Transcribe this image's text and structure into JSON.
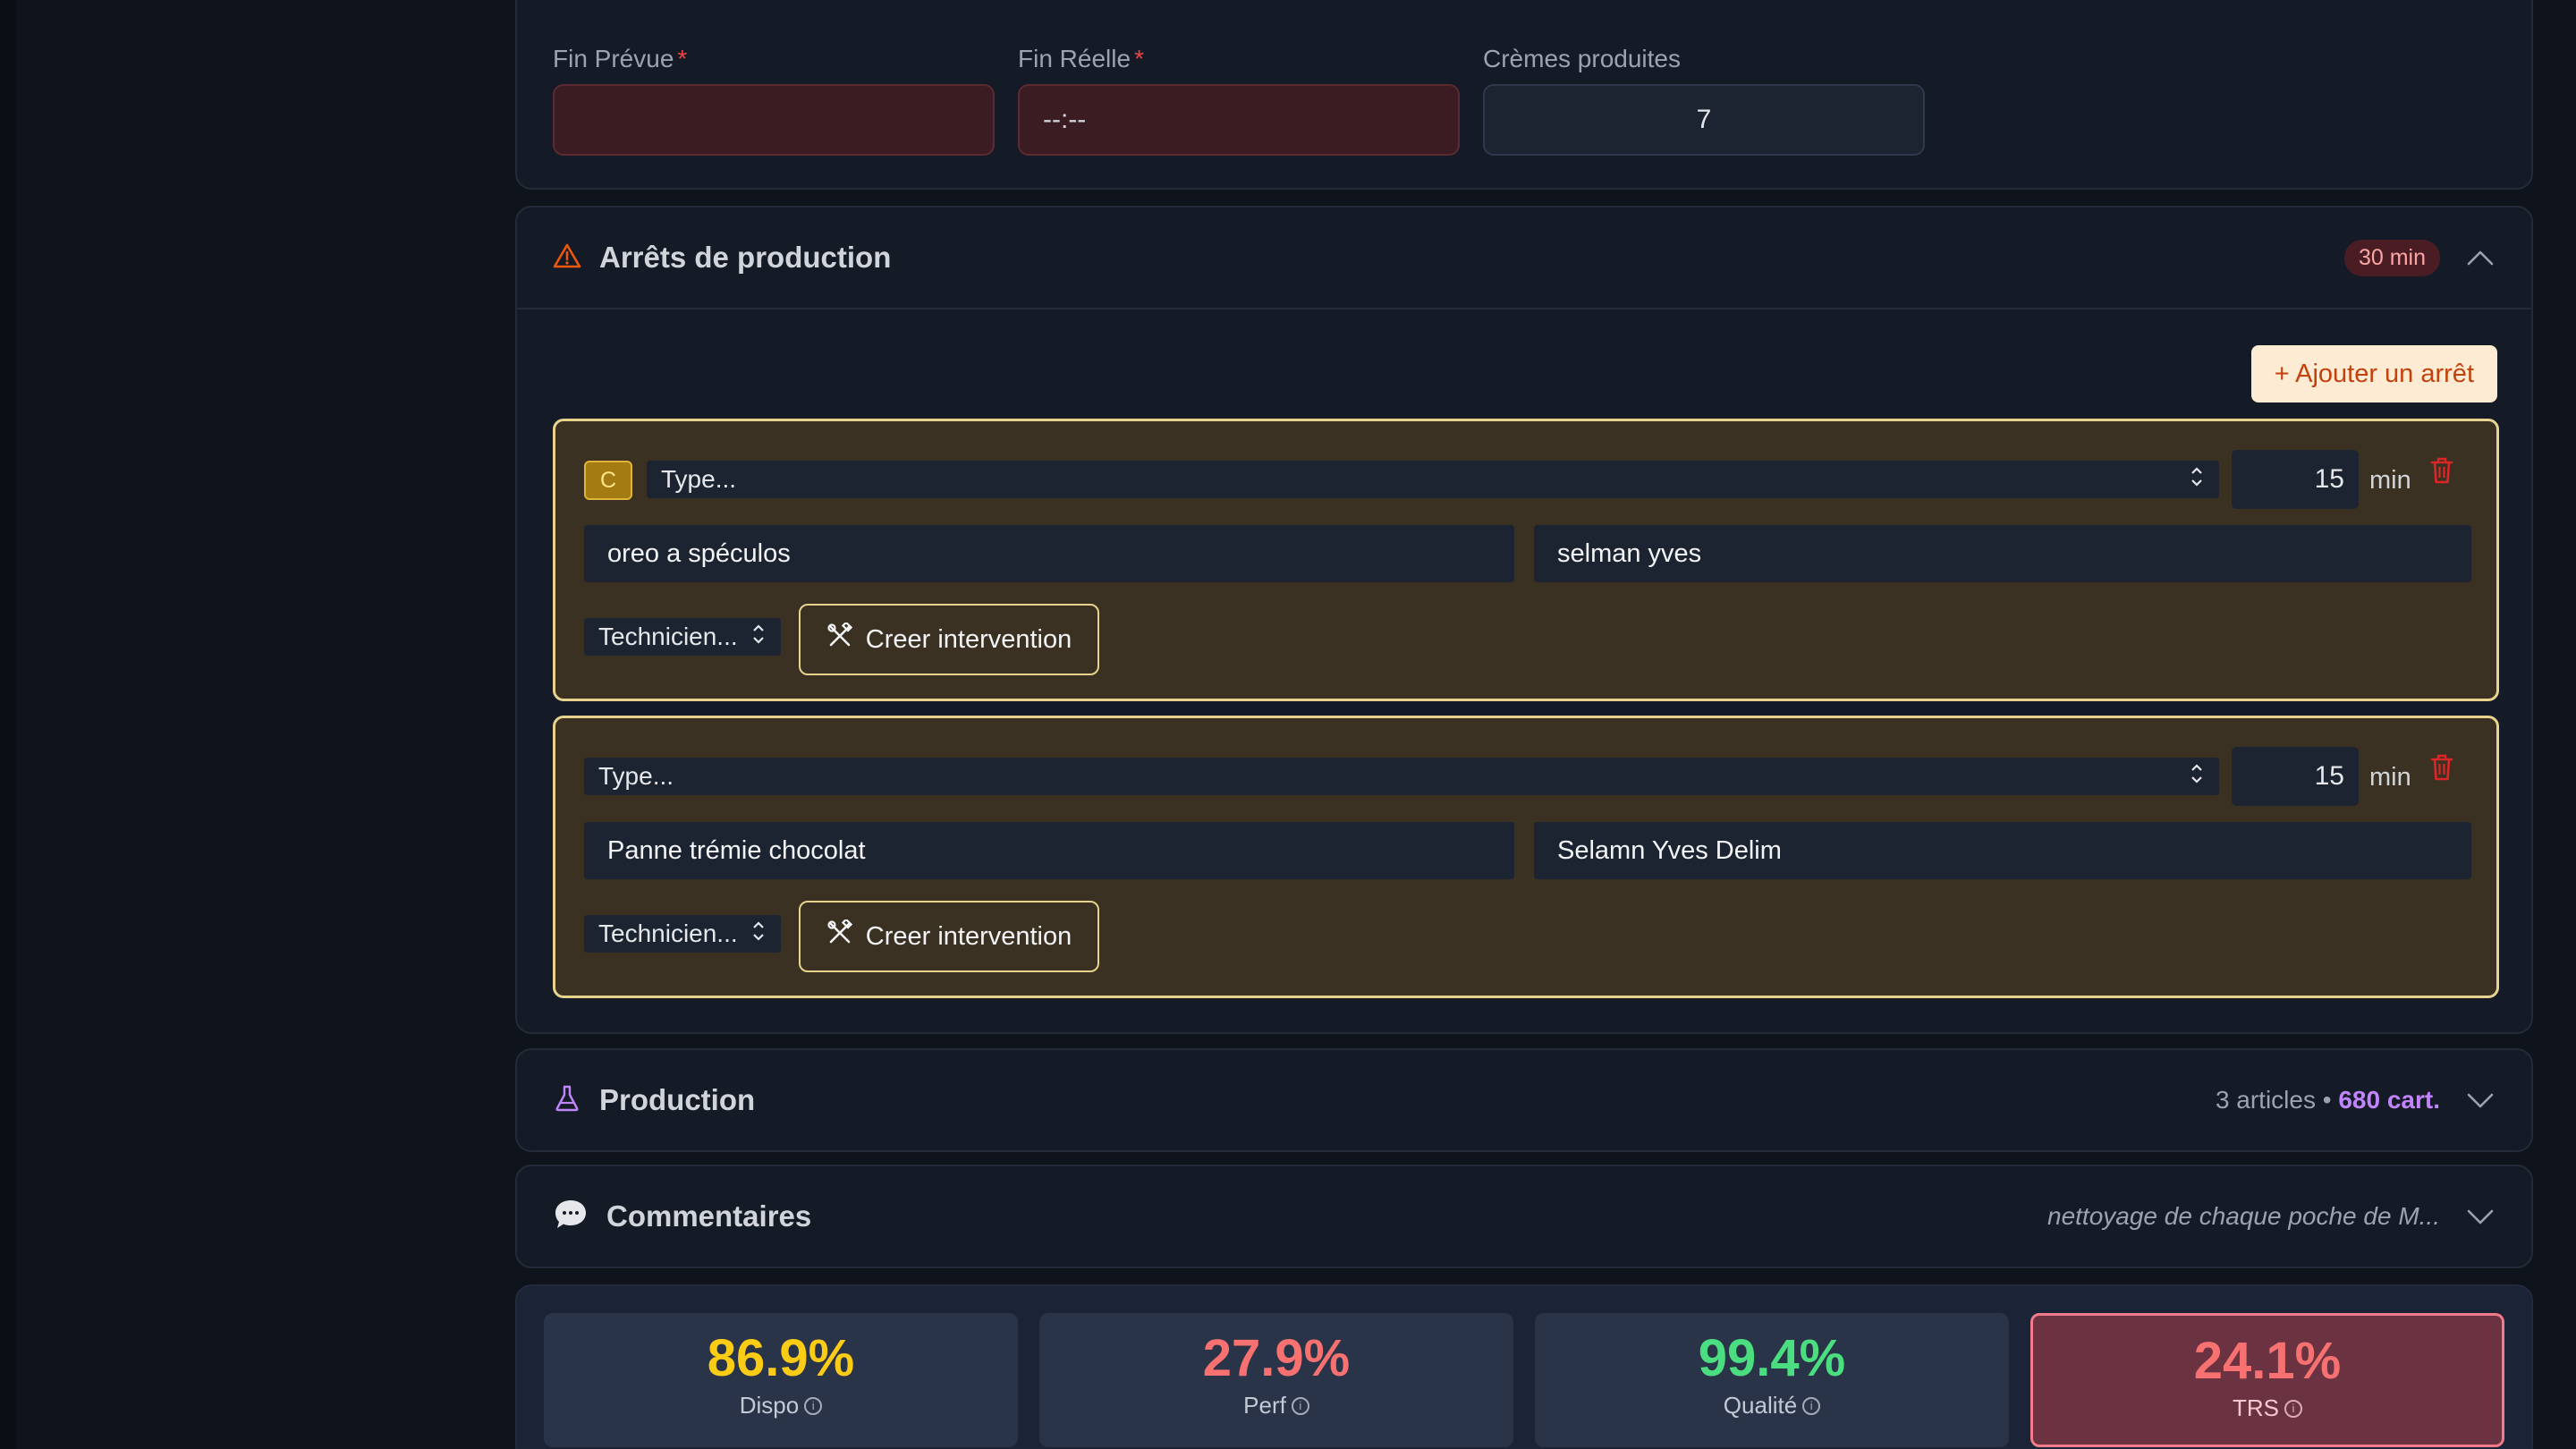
{
  "form": {
    "fin_prevue_label": "Fin Prévue",
    "fin_reelle_label": "Fin Réelle",
    "cremes_label": "Crèmes produites",
    "required_mark": "*",
    "fin_prevue_value": "",
    "fin_reelle_value": "--:--",
    "cremes_value": "7"
  },
  "arrets": {
    "title": "Arrêts de production",
    "total_badge": "30 min",
    "add_label": "+ Ajouter un arrêt",
    "stops": [
      {
        "tag": "C",
        "type_placeholder": "Type...",
        "duration": "15",
        "unit": "min",
        "description": "oreo a spéculos",
        "operator": "selman yves",
        "technician_placeholder": "Technicien...",
        "intervention_label": "Creer intervention"
      },
      {
        "type_placeholder": "Type...",
        "duration": "15",
        "unit": "min",
        "description": "Panne trémie chocolat",
        "operator": "Selamn Yves Delim",
        "technician_placeholder": "Technicien...",
        "intervention_label": "Creer intervention"
      }
    ]
  },
  "production": {
    "title": "Production",
    "articles": "3 articles",
    "separator": " • ",
    "cartons": "680 cart."
  },
  "commentaires": {
    "title": "Commentaires",
    "preview": "nettoyage de chaque poche de M..."
  },
  "kpis": [
    {
      "value": "86.9%",
      "label": "Dispo",
      "color": "#facc15"
    },
    {
      "value": "27.9%",
      "label": "Perf",
      "color": "#f87171"
    },
    {
      "value": "99.4%",
      "label": "Qualité",
      "color": "#4ade80"
    },
    {
      "value": "24.1%",
      "label": "TRS",
      "color": "#f87171"
    }
  ],
  "colors": {
    "accent_orange": "#c2410c",
    "warning_border": "#e7d38e",
    "purple": "#c084fc"
  }
}
